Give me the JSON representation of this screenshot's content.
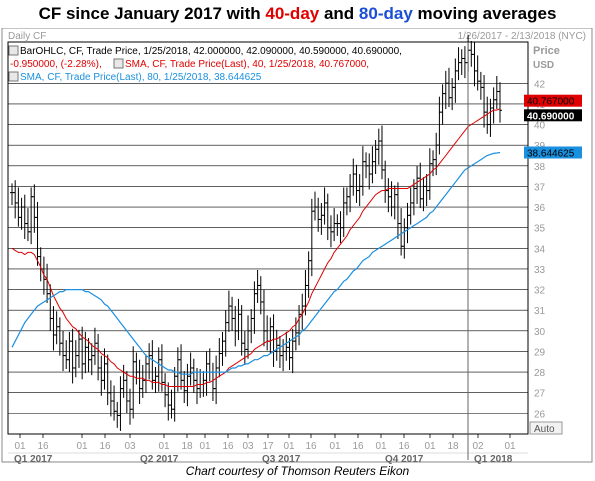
{
  "title": {
    "prefix": "CF since January 2017 with ",
    "sma40": "40-day",
    "middle": " and ",
    "sma80": "80-day",
    "suffix": " moving averages"
  },
  "header": {
    "frequency": "Daily CF",
    "date_range": "1/26/2017 - 2/13/2018 (NYC)",
    "price_label": "Price",
    "currency_label": "USD"
  },
  "legend": {
    "bar_line1": "BarOHLC, CF, Trade Price, 1/25/2018, 42.000000, 42.090000, 40.590000, 40.690000,",
    "bar_line2": "-0.950000, (-2.28%),",
    "sma40_line": "SMA, CF, Trade Price(Last),  40, 1/25/2018, 40.767000,",
    "sma80_line": "SMA, CF, Trade Price(Last),  80, 1/25/2018, 38.644625"
  },
  "footer": {
    "auto_button": "Auto",
    "credit": "Chart courtesy of Thomson Reuters Eikon"
  },
  "colors": {
    "sma40": "#e00000",
    "sma80": "#1a90e0",
    "price": "#000000",
    "grid": "#000000",
    "label_close_bg": "#000000",
    "label_sma40_bg": "#e00000",
    "label_sma80_bg": "#1a90e0"
  },
  "chart_data": {
    "type": "line",
    "series_kind": "ohlc-bars",
    "ylim": [
      25,
      44
    ],
    "yticks": [
      26,
      27,
      28,
      29,
      30,
      31,
      32,
      33,
      34,
      35,
      36,
      37,
      38,
      39,
      40,
      41,
      42
    ],
    "x_tick_labels": [
      "01",
      "16",
      "01",
      "16",
      "03",
      "01",
      "18",
      "01",
      "16",
      "03",
      "17",
      "01",
      "16",
      "01",
      "16",
      "01",
      "16",
      "01",
      "18",
      "02",
      "01"
    ],
    "quarter_labels": [
      "Q1 2017",
      "Q2 2017",
      "Q3 2017",
      "Q4 2017",
      "Q1 2018"
    ],
    "last_values": {
      "close": "40.690000",
      "sma40": "40.767000",
      "sma80": "38.644625"
    },
    "close": [
      36.7,
      36.2,
      35.5,
      36.0,
      35.2,
      34.8,
      36.5,
      35.5,
      33.6,
      33.0,
      32.5,
      31.8,
      30.6,
      29.8,
      30.2,
      29.4,
      28.8,
      28.6,
      29.5,
      28.2,
      28.8,
      29.6,
      28.4,
      29.2,
      28.6,
      28.8,
      29.4,
      28.2,
      27.6,
      28.4,
      27.0,
      26.6,
      26.1,
      25.9,
      27.2,
      27.6,
      26.6,
      26.2,
      28.5,
      28.0,
      27.2,
      27.6,
      28.4,
      28.8,
      27.6,
      27.8,
      28.6,
      27.5,
      26.9,
      26.4,
      26.2,
      27.8,
      28.6,
      27.6,
      27.1,
      27.8,
      28.2,
      27.6,
      27.2,
      27.4,
      27.6,
      28.4,
      28.0,
      27.2,
      28.2,
      28.9,
      29.5,
      30.4,
      31.2,
      30.6,
      30.0,
      30.8,
      29.4,
      29.1,
      30.0,
      30.6,
      31.8,
      32.2,
      31.4,
      30.0,
      29.5,
      30.2,
      29.0,
      29.3,
      28.8,
      29.0,
      29.2,
      28.7,
      29.5,
      29.9,
      30.8,
      31.2,
      32.2,
      33.4,
      35.8,
      36.0,
      35.4,
      35.6,
      36.2,
      35.0,
      34.8,
      35.2,
      35.2,
      35.0,
      36.2,
      36.5,
      37.0,
      37.6,
      36.8,
      37.0,
      38.2,
      38.0,
      37.6,
      38.2,
      38.8,
      39.2,
      37.8,
      36.8,
      36.5,
      36.0,
      36.6,
      35.2,
      34.1,
      35.0,
      35.6,
      36.2,
      36.9,
      37.4,
      36.4,
      37.0,
      36.8,
      38.1,
      38.3,
      39.0,
      40.6,
      41.5,
      42.0,
      41.3,
      41.8,
      42.6,
      43.0,
      43.2,
      43.0,
      43.6,
      43.4,
      42.6,
      42.1,
      41.8,
      40.6,
      40.0,
      40.8,
      41.2,
      41.6,
      40.69
    ],
    "sma40": [
      34.0,
      33.9,
      33.8,
      33.8,
      33.7,
      33.8,
      33.8,
      33.7,
      33.4,
      33.1,
      32.7,
      32.5,
      32.1,
      31.7,
      31.4,
      31.1,
      30.9,
      30.6,
      30.4,
      30.2,
      30.1,
      29.9,
      29.7,
      29.6,
      29.5,
      29.3,
      29.2,
      29.1,
      28.9,
      28.8,
      28.7,
      28.5,
      28.4,
      28.2,
      28.1,
      28.0,
      27.9,
      27.8,
      27.8,
      27.7,
      27.7,
      27.7,
      27.6,
      27.6,
      27.5,
      27.5,
      27.5,
      27.4,
      27.4,
      27.3,
      27.3,
      27.3,
      27.3,
      27.3,
      27.3,
      27.3,
      27.3,
      27.3,
      27.4,
      27.4,
      27.4,
      27.5,
      27.5,
      27.6,
      27.7,
      27.8,
      27.9,
      28.0,
      28.2,
      28.3,
      28.4,
      28.5,
      28.6,
      28.7,
      28.8,
      28.9,
      29.1,
      29.2,
      29.3,
      29.4,
      29.5,
      29.5,
      29.6,
      29.6,
      29.7,
      29.8,
      29.9,
      30.0,
      30.2,
      30.3,
      30.6,
      30.8,
      31.1,
      31.4,
      31.8,
      32.1,
      32.4,
      32.7,
      33.0,
      33.3,
      33.5,
      33.8,
      34.0,
      34.2,
      34.4,
      34.6,
      34.9,
      35.1,
      35.3,
      35.5,
      35.8,
      36.0,
      36.2,
      36.4,
      36.6,
      36.7,
      36.8,
      36.8,
      36.9,
      36.9,
      36.9,
      36.9,
      36.9,
      36.9,
      36.9,
      37.0,
      37.1,
      37.2,
      37.3,
      37.4,
      37.5,
      37.6,
      37.8,
      37.9,
      38.1,
      38.3,
      38.5,
      38.7,
      38.9,
      39.1,
      39.3,
      39.5,
      39.7,
      39.9,
      40.0,
      40.1,
      40.2,
      40.3,
      40.4,
      40.5,
      40.6,
      40.7,
      40.7,
      40.767
    ],
    "sma80": [
      29.2,
      29.5,
      29.8,
      30.1,
      30.4,
      30.6,
      30.8,
      31.0,
      31.2,
      31.3,
      31.4,
      31.5,
      31.6,
      31.7,
      31.8,
      31.9,
      31.9,
      32.0,
      32.0,
      32.0,
      32.0,
      32.0,
      32.0,
      31.9,
      31.9,
      31.8,
      31.7,
      31.6,
      31.5,
      31.3,
      31.2,
      31.0,
      30.8,
      30.6,
      30.4,
      30.2,
      30.0,
      29.8,
      29.6,
      29.4,
      29.2,
      29.0,
      28.8,
      28.7,
      28.6,
      28.5,
      28.4,
      28.3,
      28.2,
      28.1,
      28.1,
      28.0,
      28.0,
      27.9,
      27.9,
      27.9,
      27.9,
      28.0,
      28.0,
      28.0,
      28.0,
      28.0,
      28.0,
      28.0,
      28.0,
      28.0,
      28.0,
      28.0,
      28.1,
      28.2,
      28.2,
      28.3,
      28.3,
      28.4,
      28.4,
      28.5,
      28.6,
      28.6,
      28.7,
      28.8,
      28.8,
      28.9,
      29.0,
      29.1,
      29.2,
      29.3,
      29.4,
      29.5,
      29.6,
      29.7,
      29.8,
      30.0,
      30.1,
      30.3,
      30.5,
      30.7,
      30.9,
      31.1,
      31.3,
      31.5,
      31.7,
      31.9,
      32.0,
      32.2,
      32.4,
      32.5,
      32.7,
      32.9,
      33.0,
      33.2,
      33.4,
      33.5,
      33.6,
      33.8,
      33.9,
      34.0,
      34.1,
      34.2,
      34.3,
      34.4,
      34.5,
      34.6,
      34.7,
      34.8,
      34.9,
      35.0,
      35.1,
      35.2,
      35.3,
      35.4,
      35.5,
      35.7,
      35.8,
      36.0,
      36.2,
      36.4,
      36.6,
      36.8,
      37.0,
      37.2,
      37.4,
      37.6,
      37.8,
      37.9,
      38.0,
      38.1,
      38.2,
      38.3,
      38.4,
      38.5,
      38.55,
      38.6,
      38.62,
      38.644625
    ]
  }
}
